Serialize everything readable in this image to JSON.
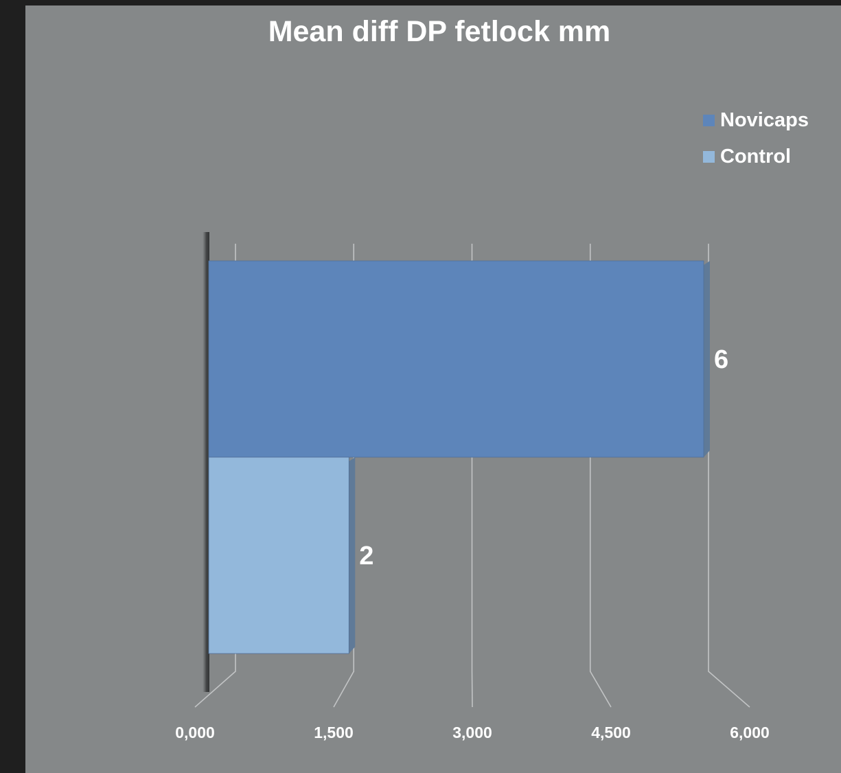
{
  "chart_data": {
    "type": "bar",
    "orientation": "horizontal",
    "title": "Mean diff DP fetlock mm",
    "xlabel": "",
    "ylabel": "",
    "xlim": [
      0,
      6
    ],
    "ticks": [
      "0,000",
      "1,500",
      "3,000",
      "4,500",
      "6,000"
    ],
    "tick_values": [
      0,
      1.5,
      3,
      4.5,
      6
    ],
    "grid": true,
    "legend_position": "top-right",
    "series": [
      {
        "name": "Novicaps",
        "value": 6.0,
        "label": "6",
        "color": "#5d85ba"
      },
      {
        "name": "Control",
        "value": 1.7,
        "label": "2",
        "color": "#93b8db"
      }
    ]
  }
}
